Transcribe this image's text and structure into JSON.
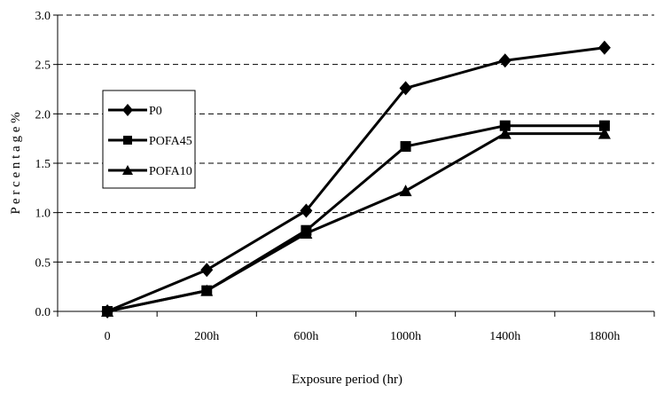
{
  "chart_data": {
    "type": "line",
    "title": "",
    "xlabel": "Exposure period (hr)",
    "ylabel": "P e r c e n t a g e %",
    "categories": [
      "0",
      "200h",
      "600h",
      "1000h",
      "1400h",
      "1800h"
    ],
    "ylim": [
      0,
      3.0
    ],
    "yticks": [
      "0.0",
      "0.5",
      "1.0",
      "1.5",
      "2.0",
      "2.5",
      "3.0"
    ],
    "grid": "horizontal-dashed",
    "legend_position": "left",
    "series": [
      {
        "name": "P0",
        "marker": "diamond",
        "values": [
          0,
          0.42,
          1.02,
          2.26,
          2.54,
          2.67
        ]
      },
      {
        "name": "POFA45",
        "marker": "square",
        "values": [
          0,
          0.21,
          0.82,
          1.67,
          1.88,
          1.88
        ]
      },
      {
        "name": "POFA10",
        "marker": "triangle",
        "values": [
          0,
          0.21,
          0.79,
          1.22,
          1.8,
          1.8
        ]
      }
    ],
    "line_color": "#000000"
  }
}
